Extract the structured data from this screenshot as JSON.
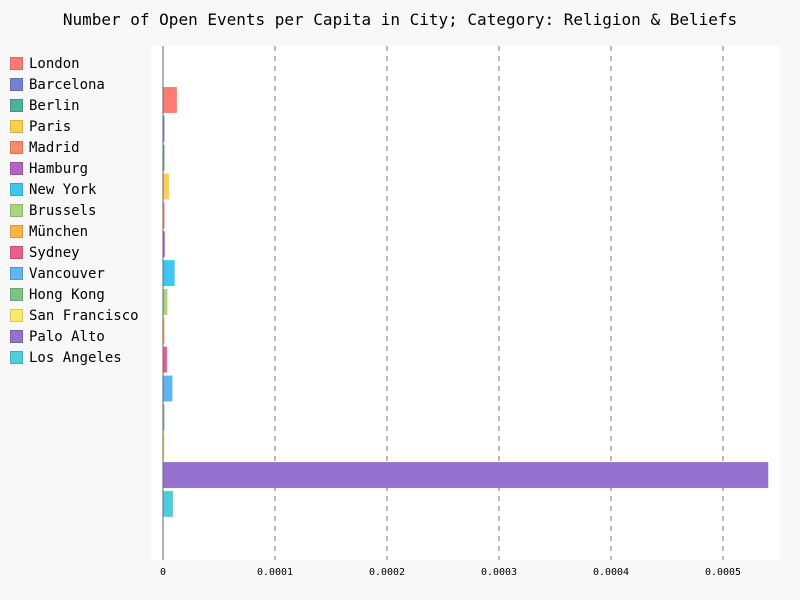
{
  "chart_data": {
    "type": "bar",
    "orientation": "horizontal",
    "title": "Number of Open Events per Capita in City; Category: Religion & Beliefs",
    "xlabel": "",
    "ylabel": "",
    "xlim": [
      0,
      0.000545
    ],
    "x_ticks": [
      0,
      0.0001,
      0.0002,
      0.0003,
      0.0004,
      0.0005
    ],
    "x_tick_labels": [
      "0",
      "0.0001",
      "0.0002",
      "0.0003",
      "0.0004",
      "0.0005"
    ],
    "grid": "vertical dashed",
    "legend_position": "left",
    "categories": [
      "London",
      "Barcelona",
      "Berlin",
      "Paris",
      "Madrid",
      "Hamburg",
      "New York",
      "Brussels",
      "München",
      "Sydney",
      "Vancouver",
      "Hong Kong",
      "San Francisco",
      "Palo Alto",
      "Los Angeles"
    ],
    "values": [
      1.2e-05,
      8e-07,
      6e-07,
      5e-06,
      1e-06,
      1.2e-06,
      1e-05,
      3.5e-06,
      4e-07,
      3.2e-06,
      8e-06,
      5e-07,
      3e-07,
      0.00054,
      8.5e-06
    ],
    "colors": [
      "#ff7b72",
      "#7580d4",
      "#47b39c",
      "#ffce4a",
      "#ff8a65",
      "#b862c6",
      "#3cc6f2",
      "#a9d679",
      "#ffb347",
      "#f25c8a",
      "#5eb4f5",
      "#78c584",
      "#ffe96b",
      "#9571cf",
      "#4ccfdd"
    ]
  }
}
